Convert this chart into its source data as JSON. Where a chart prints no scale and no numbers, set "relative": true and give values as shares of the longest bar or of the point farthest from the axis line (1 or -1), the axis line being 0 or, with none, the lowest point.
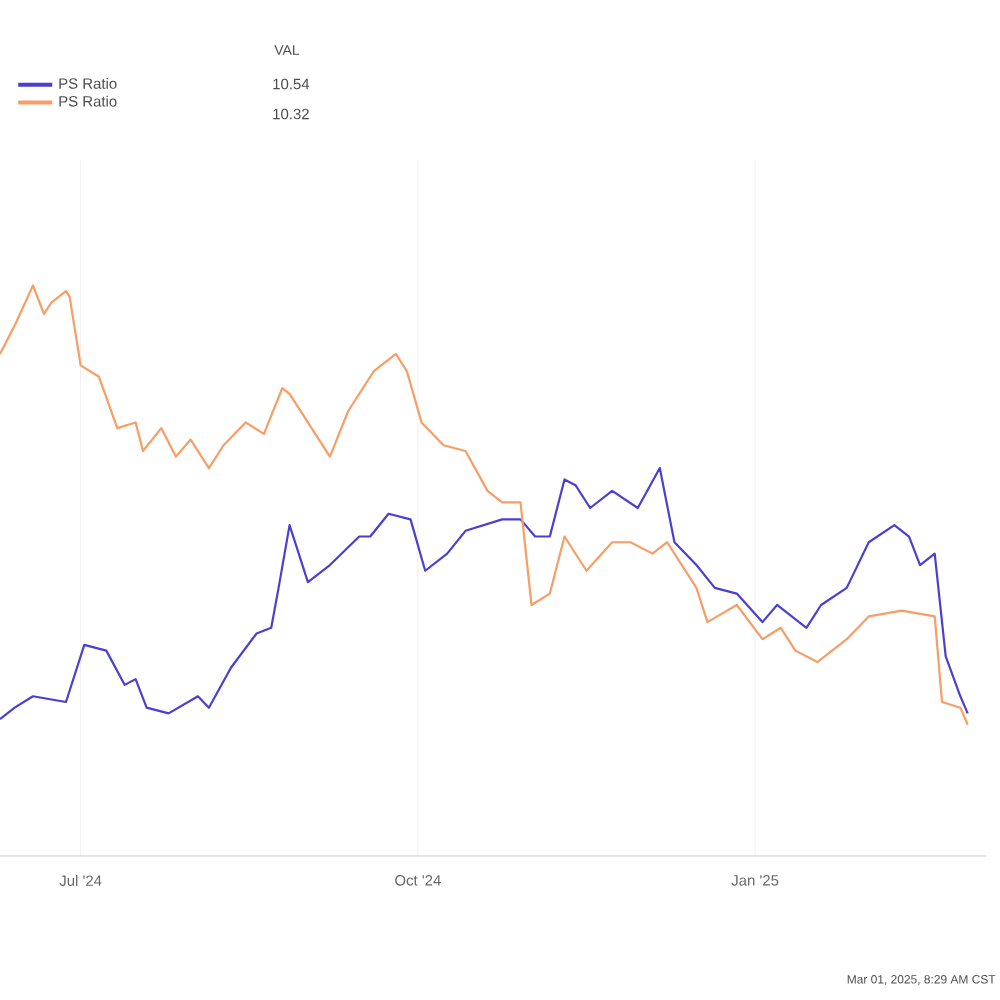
{
  "chart_data": {
    "type": "line",
    "relative": true,
    "grid": true,
    "legend": "top left",
    "marker": "none",
    "line_style": "solid",
    "xlim": [
      "2024-06-09",
      "2025-03-05"
    ],
    "xticks": [
      {
        "value": "2024-07-01",
        "label": "Jul '24"
      },
      {
        "value": "2024-10-01",
        "label": "Oct '24"
      },
      {
        "value": "2025-01-01",
        "label": "Jan '25"
      }
    ],
    "annotations": [
      "VAL",
      "10.54",
      "10.32",
      "Mar 01, 2025, 8:29 AM CST"
    ],
    "series": [
      {
        "name": "PS Ratio",
        "color": "#4b3fd0",
        "x": [
          "2024-06-09",
          "2024-06-13",
          "2024-06-18",
          "2024-06-27",
          "2024-07-02",
          "2024-07-08",
          "2024-07-13",
          "2024-07-16",
          "2024-07-19",
          "2024-07-25",
          "2024-08-02",
          "2024-08-05",
          "2024-08-11",
          "2024-08-18",
          "2024-08-22",
          "2024-08-24",
          "2024-08-27",
          "2024-09-01",
          "2024-09-07",
          "2024-09-15",
          "2024-09-18",
          "2024-09-23",
          "2024-09-29",
          "2024-10-03",
          "2024-10-09",
          "2024-10-14",
          "2024-10-24",
          "2024-10-29",
          "2024-11-02",
          "2024-11-06",
          "2024-11-10",
          "2024-11-13",
          "2024-11-17",
          "2024-11-23",
          "2024-11-30",
          "2024-12-06",
          "2024-12-10",
          "2024-12-16",
          "2024-12-21",
          "2024-12-27",
          "2025-01-03",
          "2025-01-07",
          "2025-01-15",
          "2025-01-19",
          "2025-01-26",
          "2025-02-01",
          "2025-02-08",
          "2025-02-12",
          "2025-02-15",
          "2025-02-19",
          "2025-02-22",
          "2025-02-26",
          "2025-02-28"
        ],
        "values": [
          0.24,
          0.26,
          0.28,
          0.27,
          0.37,
          0.36,
          0.3,
          0.31,
          0.26,
          0.25,
          0.28,
          0.26,
          0.33,
          0.39,
          0.4,
          0.47,
          0.58,
          0.48,
          0.51,
          0.56,
          0.56,
          0.6,
          0.59,
          0.5,
          0.53,
          0.57,
          0.59,
          0.59,
          0.56,
          0.56,
          0.66,
          0.65,
          0.61,
          0.64,
          0.61,
          0.68,
          0.55,
          0.51,
          0.47,
          0.46,
          0.41,
          0.44,
          0.4,
          0.44,
          0.47,
          0.55,
          0.58,
          0.56,
          0.51,
          0.53,
          0.35,
          0.28,
          0.25
        ]
      },
      {
        "name": "PS Ratio",
        "color": "#f79d66",
        "x": [
          "2024-06-09",
          "2024-06-13",
          "2024-06-18",
          "2024-06-21",
          "2024-06-23",
          "2024-06-27",
          "2024-06-28",
          "2024-07-01",
          "2024-07-06",
          "2024-07-11",
          "2024-07-16",
          "2024-07-18",
          "2024-07-23",
          "2024-07-27",
          "2024-07-31",
          "2024-08-05",
          "2024-08-09",
          "2024-08-15",
          "2024-08-20",
          "2024-08-25",
          "2024-08-27",
          "2024-09-02",
          "2024-09-07",
          "2024-09-12",
          "2024-09-19",
          "2024-09-25",
          "2024-09-28",
          "2024-10-02",
          "2024-10-08",
          "2024-10-14",
          "2024-10-20",
          "2024-10-24",
          "2024-10-29",
          "2024-11-01",
          "2024-11-06",
          "2024-11-10",
          "2024-11-16",
          "2024-11-23",
          "2024-11-28",
          "2024-12-04",
          "2024-12-08",
          "2024-12-16",
          "2024-12-19",
          "2024-12-27",
          "2025-01-03",
          "2025-01-08",
          "2025-01-12",
          "2025-01-18",
          "2025-01-26",
          "2025-02-01",
          "2025-02-10",
          "2025-02-19",
          "2025-02-21",
          "2025-02-26",
          "2025-02-28"
        ],
        "values": [
          0.88,
          0.93,
          1.0,
          0.95,
          0.97,
          0.99,
          0.98,
          0.86,
          0.84,
          0.75,
          0.76,
          0.71,
          0.75,
          0.7,
          0.73,
          0.68,
          0.72,
          0.76,
          0.74,
          0.82,
          0.81,
          0.75,
          0.7,
          0.78,
          0.85,
          0.88,
          0.85,
          0.76,
          0.72,
          0.71,
          0.64,
          0.62,
          0.62,
          0.44,
          0.46,
          0.56,
          0.5,
          0.55,
          0.55,
          0.53,
          0.55,
          0.47,
          0.41,
          0.44,
          0.38,
          0.4,
          0.36,
          0.34,
          0.38,
          0.42,
          0.43,
          0.42,
          0.27,
          0.26,
          0.23
        ]
      }
    ]
  }
}
